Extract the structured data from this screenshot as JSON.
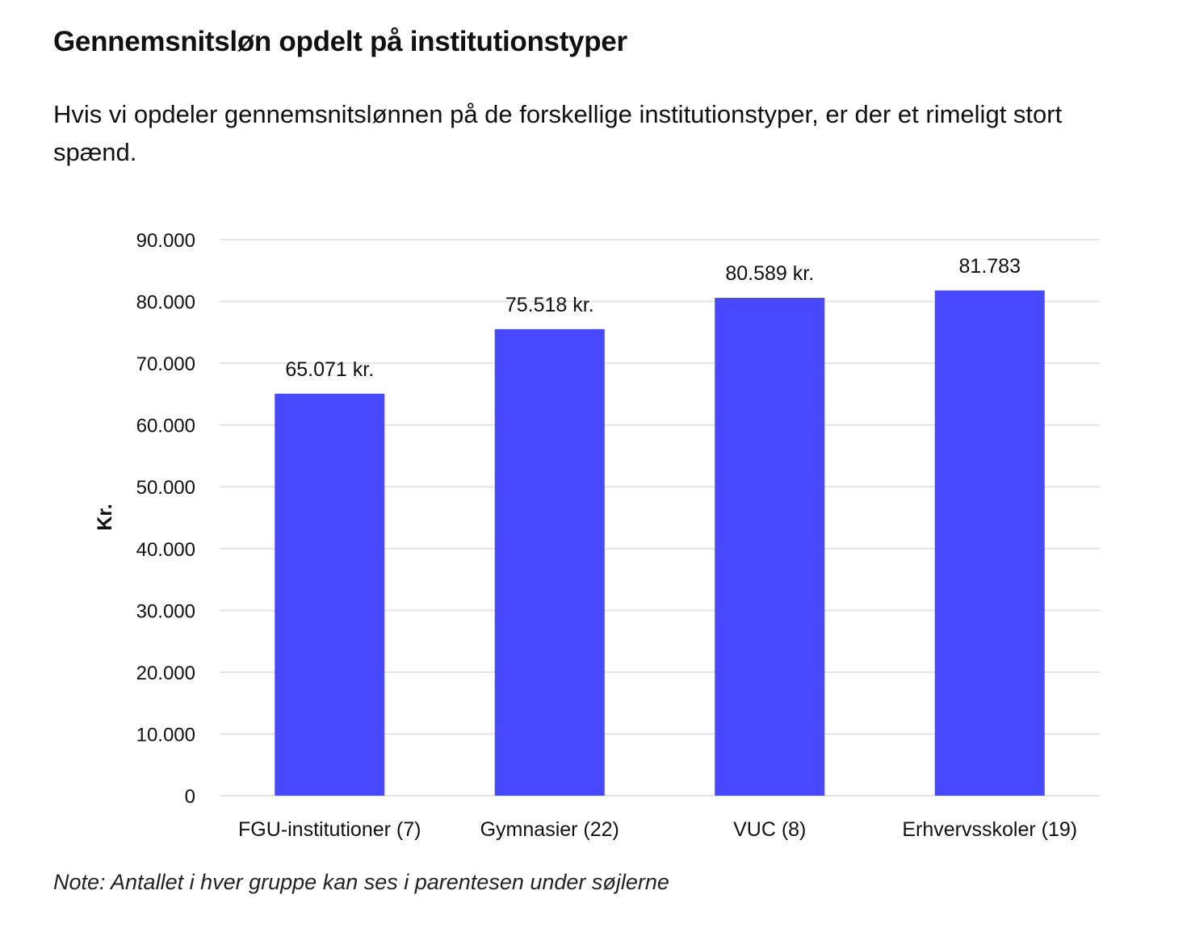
{
  "title": "Gennemsnitsløn opdelt på institutionstyper",
  "subtitle": "Hvis vi opdeler gennemsnitslønnen på de forskellige institutionstyper, er der et rimeligt stort spænd.",
  "note": "Note: Antallet i hver gruppe kan ses i parentesen under søjlerne",
  "colors": {
    "bar": "#4848FF",
    "grid": "#E3E3EC"
  },
  "chart_data": {
    "type": "bar",
    "categories": [
      "FGU-institutioner (7)",
      "Gymnasier (22)",
      "VUC (8)",
      "Erhvervsskoler (19)"
    ],
    "values": [
      65071,
      75518,
      80589,
      81783
    ],
    "data_labels": [
      "65.071 kr.",
      "75.518 kr.",
      "80.589 kr.",
      "81.783"
    ],
    "ylabel": "Kr.",
    "xlabel": "",
    "ylim": [
      0,
      90000
    ],
    "yticks": [
      0,
      10000,
      20000,
      30000,
      40000,
      50000,
      60000,
      70000,
      80000,
      90000
    ],
    "ytick_labels": [
      "0",
      "10.000",
      "20.000",
      "30.000",
      "40.000",
      "50.000",
      "60.000",
      "70.000",
      "80.000",
      "90.000"
    ],
    "grid": true
  }
}
